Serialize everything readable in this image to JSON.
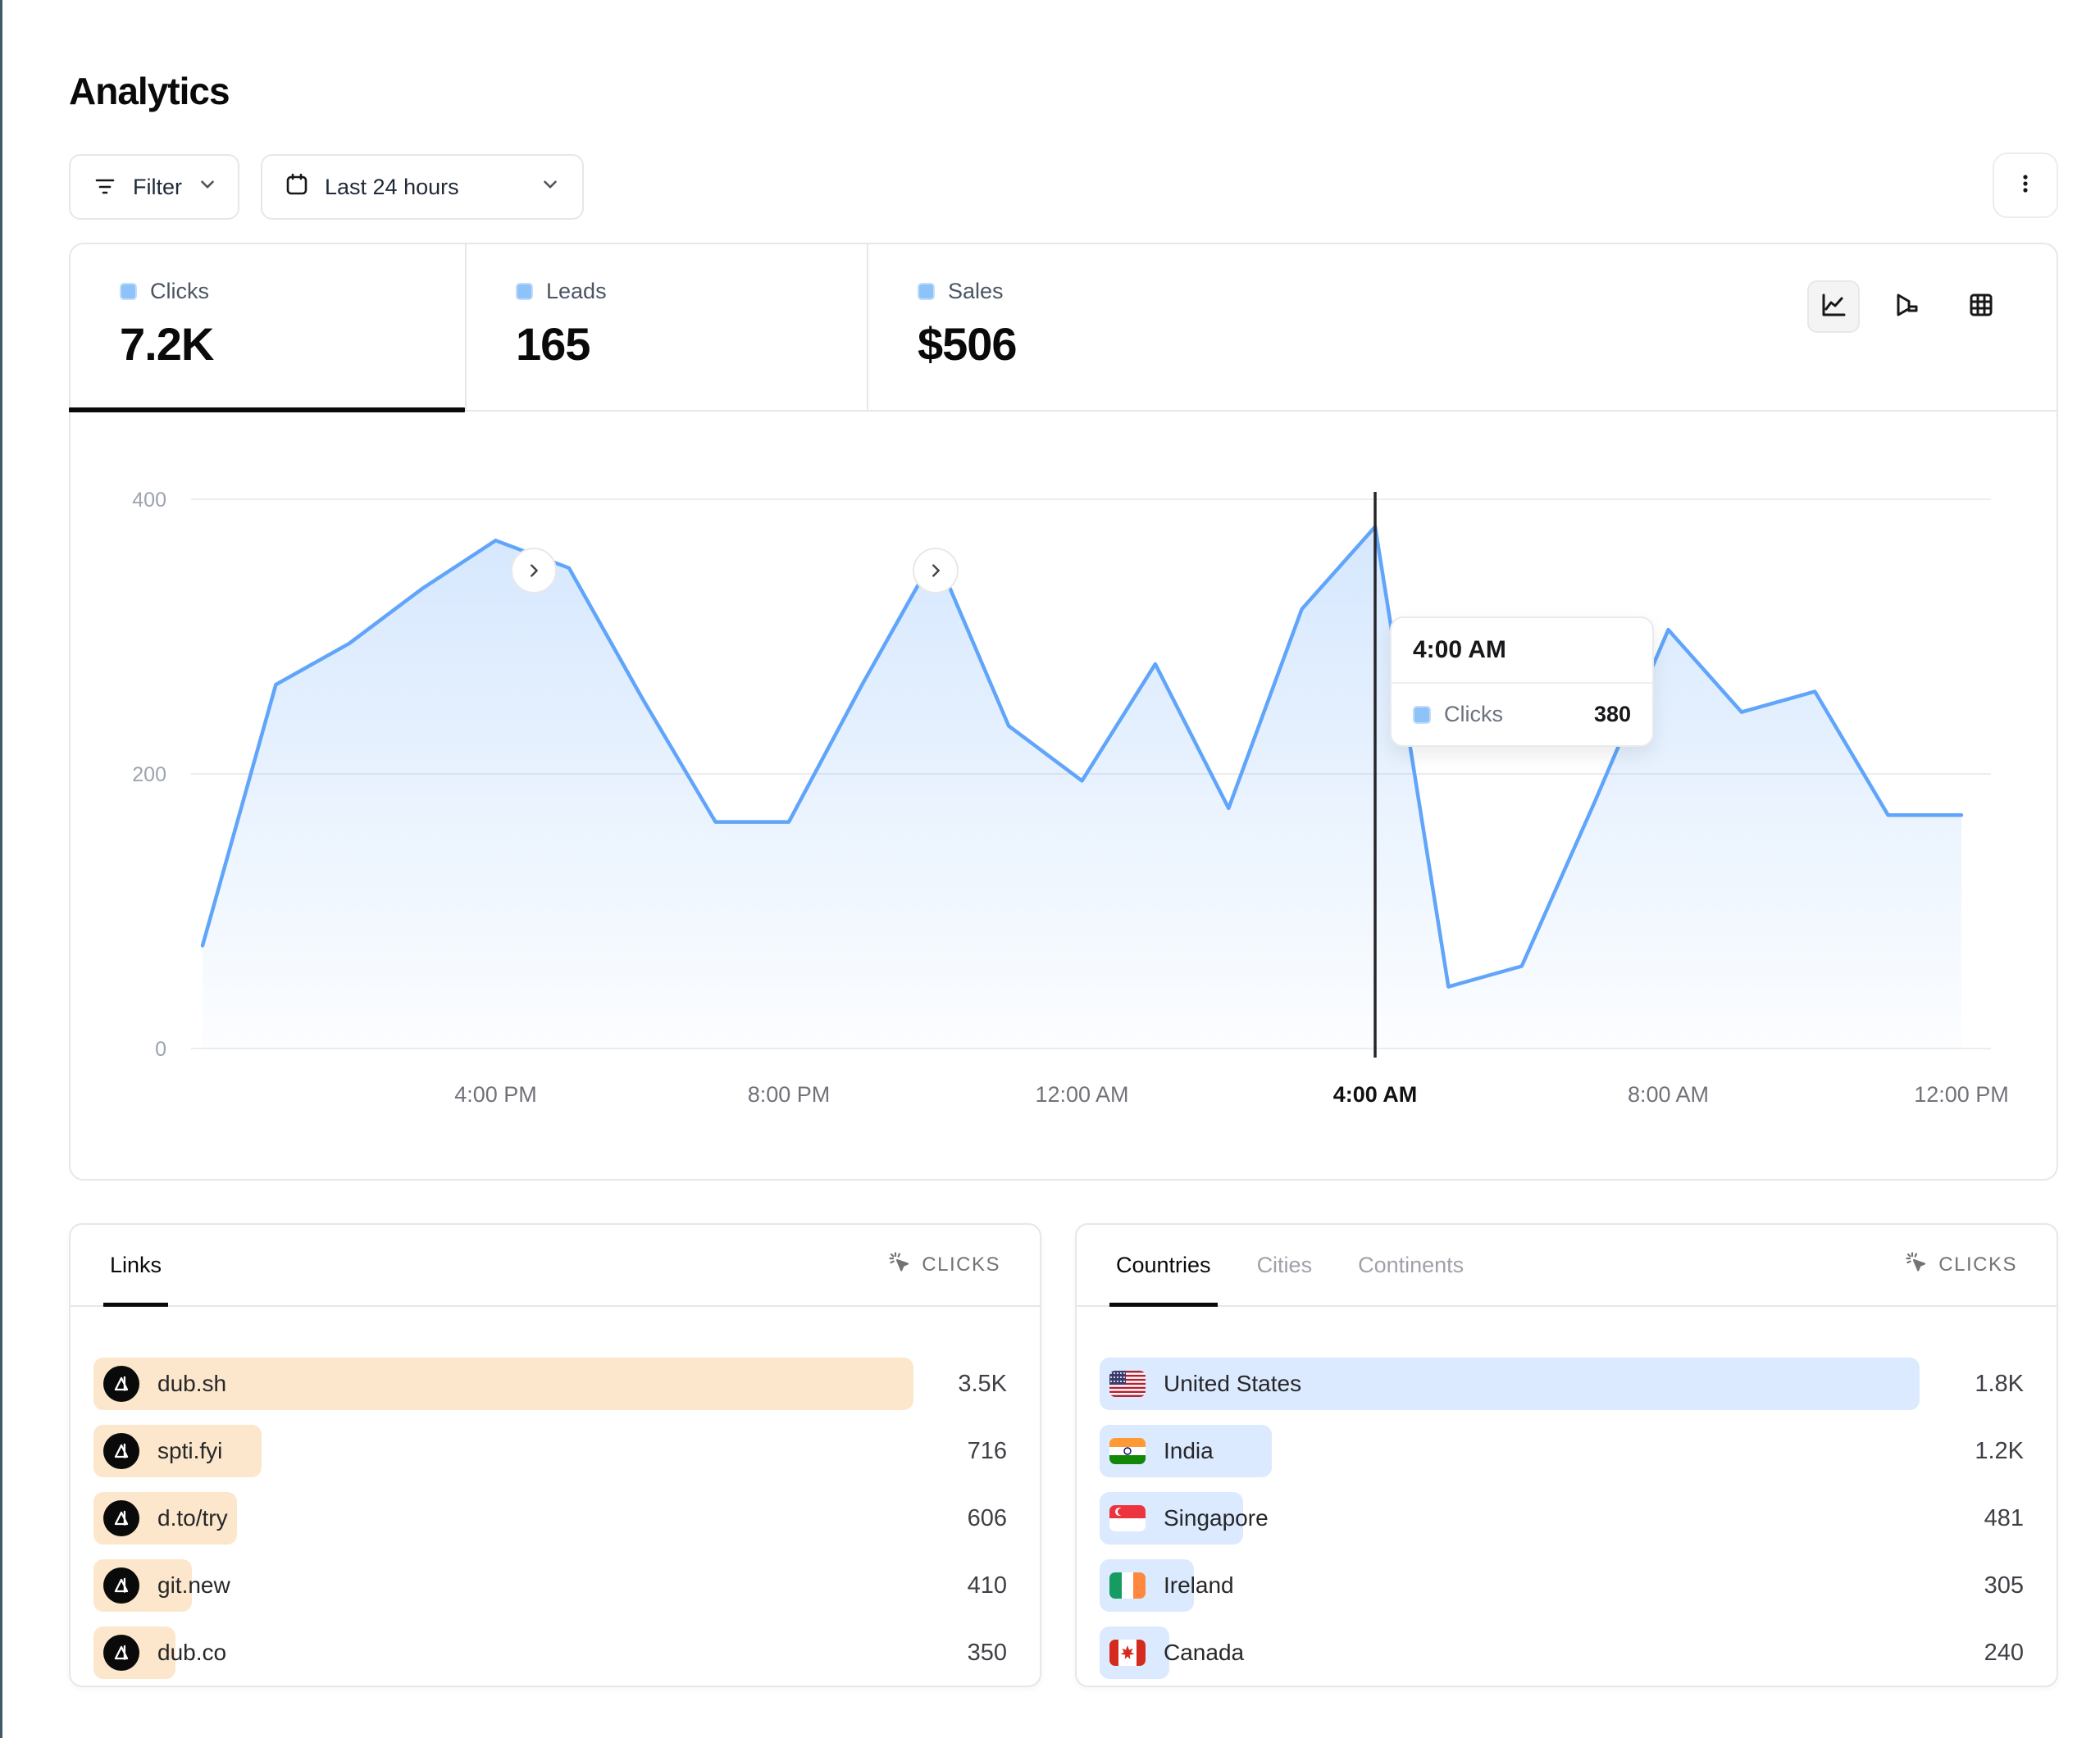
{
  "page": {
    "title": "Analytics",
    "accent_edge_color": "#3e5a64"
  },
  "toolbar": {
    "filter_label": "Filter",
    "date_range_label": "Last 24 hours"
  },
  "stats": {
    "tabs": [
      {
        "id": "clicks",
        "label": "Clicks",
        "value": "7.2K",
        "active": true
      },
      {
        "id": "leads",
        "label": "Leads",
        "value": "165",
        "active": false
      },
      {
        "id": "sales",
        "label": "Sales",
        "value": "$506",
        "active": false
      }
    ]
  },
  "chart_toolbar": {
    "icons": [
      "line-chart",
      "funnel-chart",
      "table-grid"
    ],
    "active": "line-chart"
  },
  "chart_data": {
    "type": "area",
    "series_name": "Clicks",
    "x": [
      "12:00 PM",
      "1:00 PM",
      "2:00 PM",
      "3:00 PM",
      "4:00 PM",
      "5:00 PM",
      "6:00 PM",
      "7:00 PM",
      "8:00 PM",
      "9:00 PM",
      "10:00 PM",
      "11:00 PM",
      "12:00 AM",
      "1:00 AM",
      "2:00 AM",
      "3:00 AM",
      "4:00 AM",
      "5:00 AM",
      "6:00 AM",
      "7:00 AM",
      "8:00 AM",
      "9:00 AM",
      "10:00 AM",
      "11:00 AM",
      "12:00 PM"
    ],
    "values": [
      75,
      265,
      295,
      335,
      370,
      350,
      255,
      165,
      165,
      265,
      360,
      235,
      195,
      280,
      175,
      320,
      380,
      45,
      60,
      180,
      305,
      245,
      260,
      170,
      170
    ],
    "ylim": [
      0,
      400
    ],
    "yticks": [
      0,
      200,
      400
    ],
    "xticks": [
      {
        "label": "4:00 PM",
        "index": 4
      },
      {
        "label": "8:00 PM",
        "index": 8
      },
      {
        "label": "12:00 AM",
        "index": 12
      },
      {
        "label": "4:00 AM",
        "index": 16
      },
      {
        "label": "8:00 AM",
        "index": 20
      },
      {
        "label": "12:00 PM",
        "index": 24
      }
    ],
    "grid": "horizontal",
    "legend_position": "none",
    "line_color": "#60a5fa",
    "hovered": {
      "index": 16,
      "label": "4:00 AM",
      "value": 380
    }
  },
  "tooltip": {
    "time": "4:00 AM",
    "series": "Clicks",
    "value": "380"
  },
  "links_panel": {
    "tabs": [
      {
        "label": "Links"
      }
    ],
    "active_tab": "Links",
    "metric_label": "CLICKS",
    "bar_color": "#fce6cc",
    "rows": [
      {
        "label": "dub.sh",
        "value": "3.5K",
        "bar_pct": 100
      },
      {
        "label": "spti.fyi",
        "value": "716",
        "bar_pct": 20.5
      },
      {
        "label": "d.to/try",
        "value": "606",
        "bar_pct": 17.5
      },
      {
        "label": "git.new",
        "value": "410",
        "bar_pct": 12
      },
      {
        "label": "dub.co",
        "value": "350",
        "bar_pct": 10
      }
    ]
  },
  "countries_panel": {
    "tabs": [
      {
        "label": "Countries"
      },
      {
        "label": "Cities"
      },
      {
        "label": "Continents"
      }
    ],
    "active_tab": "Countries",
    "metric_label": "CLICKS",
    "bar_color": "#dbeafe",
    "rows": [
      {
        "label": "United States",
        "flag": "us",
        "value": "1.8K",
        "bar_pct": 100
      },
      {
        "label": "India",
        "flag": "in",
        "value": "1.2K",
        "bar_pct": 21
      },
      {
        "label": "Singapore",
        "flag": "sg",
        "value": "481",
        "bar_pct": 17.5
      },
      {
        "label": "Ireland",
        "flag": "ie",
        "value": "305",
        "bar_pct": 11.5
      },
      {
        "label": "Canada",
        "flag": "ca",
        "value": "240",
        "bar_pct": 8.5
      }
    ]
  },
  "colors": {
    "border": "#e5e7eb",
    "line_blue": "#60a5fa",
    "legend_blue": "#8ec3f9",
    "orange_bar": "#fce6cc",
    "blue_bar": "#dbeafe",
    "muted_text": "#6b7280",
    "axis_text": "#9ca3af"
  }
}
